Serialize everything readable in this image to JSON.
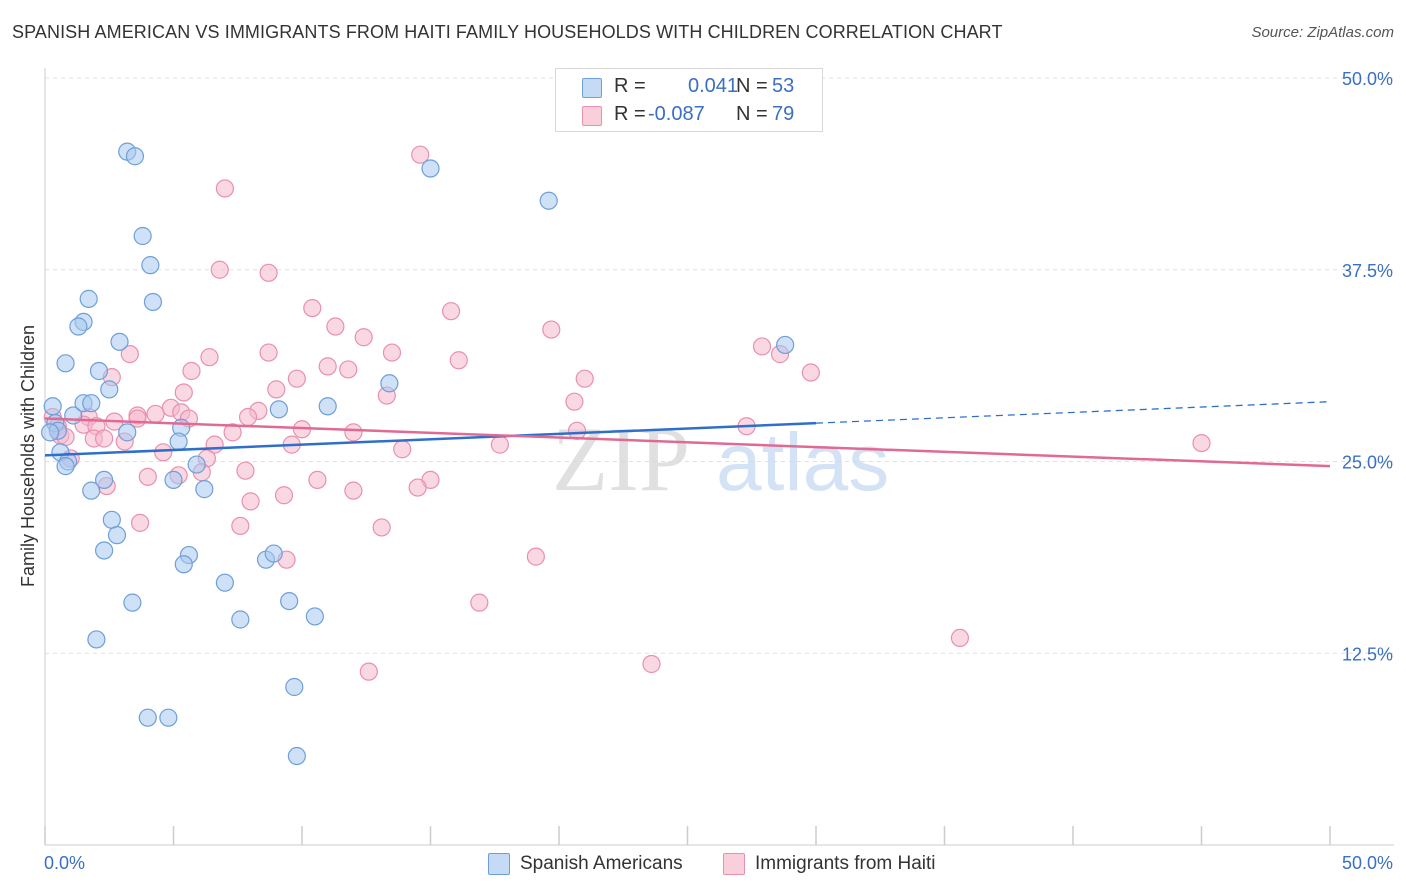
{
  "title": "SPANISH AMERICAN VS IMMIGRANTS FROM HAITI FAMILY HOUSEHOLDS WITH CHILDREN CORRELATION CHART",
  "source": "Source: ZipAtlas.com",
  "colors": {
    "blue_fill": "#a8c8f0",
    "blue_stroke": "#6e9fd8",
    "blue_line": "#2f6fcb",
    "pink_fill": "#f6b8cc",
    "pink_stroke": "#e890ae",
    "pink_line": "#e06a94",
    "axis_text": "#3a6fc4",
    "grid": "#e0e0e0"
  },
  "legend": {
    "r_label": "R =",
    "n_label": "N =",
    "series": [
      {
        "r": "0.041",
        "n": "53"
      },
      {
        "r": "-0.087",
        "n": "79"
      }
    ]
  },
  "bottom_legend": [
    "Spanish Americans",
    "Immigrants from Haiti"
  ],
  "chart_data": {
    "type": "scatter",
    "title": "SPANISH AMERICAN VS IMMIGRANTS FROM HAITI FAMILY HOUSEHOLDS WITH CHILDREN CORRELATION CHART",
    "xlabel": "",
    "ylabel": "Family Households with Children",
    "xlim": [
      0,
      50
    ],
    "ylim": [
      0,
      50
    ],
    "x_tick_labels": [
      "0.0%",
      "50.0%"
    ],
    "y_ticks": [
      12.5,
      25.0,
      37.5,
      50.0
    ],
    "y_tick_labels": [
      "12.5%",
      "25.0%",
      "37.5%",
      "50.0%"
    ],
    "grid": "horizontal dashed",
    "legend_placement": "top-center",
    "watermark": "ZIPatlas",
    "series": [
      {
        "name": "Spanish Americans",
        "trend": {
          "x": [
            0,
            30.0
          ],
          "y": [
            25.4,
            27.5
          ],
          "dashed_to": [
            50,
            28.9
          ]
        },
        "points": [
          [
            3.2,
            45.2
          ],
          [
            3.5,
            44.9
          ],
          [
            15.0,
            44.1
          ],
          [
            19.6,
            42.0
          ],
          [
            3.8,
            39.7
          ],
          [
            4.1,
            37.8
          ],
          [
            1.7,
            35.6
          ],
          [
            4.2,
            35.4
          ],
          [
            1.5,
            34.1
          ],
          [
            1.3,
            33.8
          ],
          [
            2.9,
            32.8
          ],
          [
            0.8,
            31.4
          ],
          [
            0.3,
            28.6
          ],
          [
            1.1,
            28.0
          ],
          [
            1.5,
            28.8
          ],
          [
            1.8,
            28.8
          ],
          [
            2.1,
            30.9
          ],
          [
            2.5,
            29.7
          ],
          [
            0.4,
            27.5
          ],
          [
            0.5,
            27.0
          ],
          [
            3.2,
            26.9
          ],
          [
            5.3,
            27.2
          ],
          [
            9.1,
            28.4
          ],
          [
            11.0,
            28.6
          ],
          [
            13.4,
            30.1
          ],
          [
            0.6,
            25.6
          ],
          [
            0.9,
            25.0
          ],
          [
            0.8,
            24.7
          ],
          [
            5.2,
            26.3
          ],
          [
            5.9,
            24.8
          ],
          [
            2.3,
            23.8
          ],
          [
            1.8,
            23.1
          ],
          [
            5.0,
            23.8
          ],
          [
            6.2,
            23.2
          ],
          [
            2.6,
            21.2
          ],
          [
            2.8,
            20.2
          ],
          [
            2.3,
            19.2
          ],
          [
            5.6,
            18.9
          ],
          [
            5.4,
            18.3
          ],
          [
            8.6,
            18.6
          ],
          [
            8.9,
            19.0
          ],
          [
            7.0,
            17.1
          ],
          [
            3.4,
            15.8
          ],
          [
            9.5,
            15.9
          ],
          [
            7.6,
            14.7
          ],
          [
            10.5,
            14.9
          ],
          [
            2.0,
            13.4
          ],
          [
            9.7,
            10.3
          ],
          [
            4.0,
            8.3
          ],
          [
            4.8,
            8.3
          ],
          [
            9.8,
            5.8
          ],
          [
            28.8,
            32.6
          ],
          [
            0.2,
            26.9
          ]
        ]
      },
      {
        "name": "Immigrants from Haiti",
        "trend": {
          "x": [
            0,
            50
          ],
          "y": [
            27.8,
            24.7
          ]
        },
        "points": [
          [
            14.6,
            45.0
          ],
          [
            7.0,
            42.8
          ],
          [
            6.8,
            37.5
          ],
          [
            8.7,
            37.3
          ],
          [
            10.4,
            35.0
          ],
          [
            15.8,
            34.8
          ],
          [
            11.3,
            33.8
          ],
          [
            19.7,
            33.6
          ],
          [
            12.4,
            33.1
          ],
          [
            27.9,
            32.5
          ],
          [
            28.6,
            32.0
          ],
          [
            13.5,
            32.1
          ],
          [
            3.3,
            32.0
          ],
          [
            8.7,
            32.1
          ],
          [
            6.4,
            31.8
          ],
          [
            16.1,
            31.6
          ],
          [
            11.0,
            31.2
          ],
          [
            11.8,
            31.0
          ],
          [
            5.7,
            30.9
          ],
          [
            29.8,
            30.8
          ],
          [
            21.0,
            30.4
          ],
          [
            2.6,
            30.5
          ],
          [
            9.8,
            30.4
          ],
          [
            5.4,
            29.5
          ],
          [
            9.0,
            29.7
          ],
          [
            13.3,
            29.3
          ],
          [
            20.6,
            28.9
          ],
          [
            4.9,
            28.5
          ],
          [
            5.3,
            28.2
          ],
          [
            8.3,
            28.3
          ],
          [
            3.6,
            28.0
          ],
          [
            4.3,
            28.1
          ],
          [
            5.6,
            27.8
          ],
          [
            7.9,
            27.9
          ],
          [
            1.7,
            27.9
          ],
          [
            0.3,
            27.9
          ],
          [
            0.5,
            27.3
          ],
          [
            2.7,
            27.6
          ],
          [
            3.6,
            27.8
          ],
          [
            1.5,
            27.4
          ],
          [
            2.0,
            27.3
          ],
          [
            27.3,
            27.3
          ],
          [
            20.7,
            27.0
          ],
          [
            7.3,
            26.9
          ],
          [
            10.0,
            27.1
          ],
          [
            12.0,
            26.9
          ],
          [
            0.6,
            26.7
          ],
          [
            0.8,
            26.6
          ],
          [
            1.9,
            26.5
          ],
          [
            2.3,
            26.5
          ],
          [
            3.1,
            26.3
          ],
          [
            6.6,
            26.1
          ],
          [
            9.6,
            26.1
          ],
          [
            17.7,
            26.1
          ],
          [
            13.9,
            25.8
          ],
          [
            45.0,
            26.2
          ],
          [
            4.6,
            25.6
          ],
          [
            6.3,
            25.2
          ],
          [
            1.0,
            25.2
          ],
          [
            7.8,
            24.4
          ],
          [
            6.1,
            24.3
          ],
          [
            4.0,
            24.0
          ],
          [
            5.2,
            24.1
          ],
          [
            10.6,
            23.8
          ],
          [
            15.0,
            23.8
          ],
          [
            2.4,
            23.4
          ],
          [
            14.5,
            23.3
          ],
          [
            12.0,
            23.1
          ],
          [
            9.3,
            22.8
          ],
          [
            8.0,
            22.4
          ],
          [
            3.7,
            21.0
          ],
          [
            7.6,
            20.8
          ],
          [
            13.1,
            20.7
          ],
          [
            9.4,
            18.6
          ],
          [
            19.1,
            18.8
          ],
          [
            16.9,
            15.8
          ],
          [
            35.6,
            13.5
          ],
          [
            23.6,
            11.8
          ],
          [
            12.6,
            11.3
          ]
        ]
      }
    ]
  }
}
